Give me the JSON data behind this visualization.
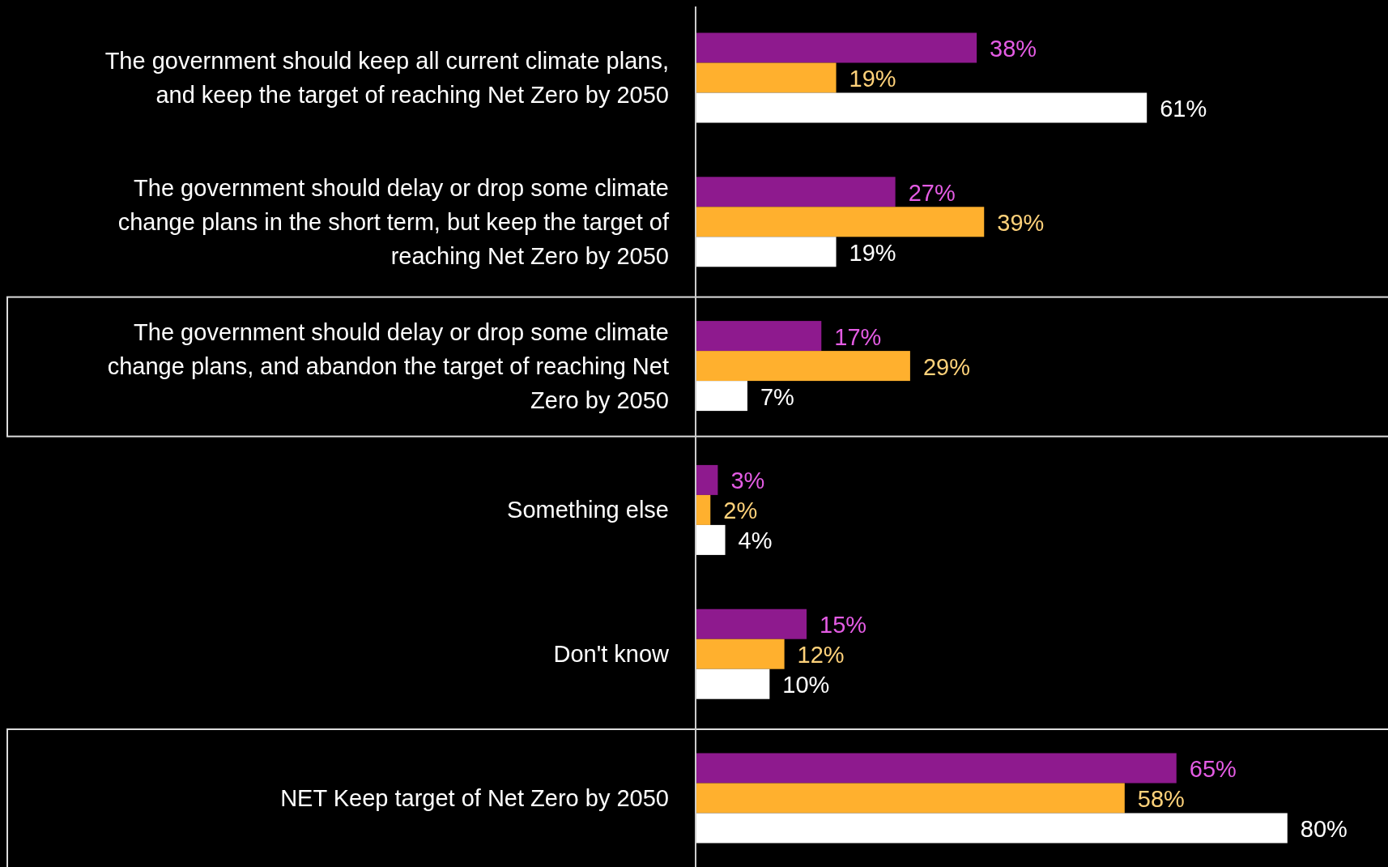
{
  "chart_data": {
    "type": "bar",
    "orientation": "horizontal",
    "categories": [
      "The government should keep all current climate plans, and keep the target of reaching Net Zero by 2050",
      "The government should delay or drop some climate change plans in the short term, but keep the target of reaching Net Zero by 2050",
      "The government should delay or drop some climate change plans, and abandon the target of reaching Net Zero by 2050",
      "Something else",
      "Don't know",
      "NET Keep target of Net Zero by 2050"
    ],
    "series": [
      {
        "color": "#8e1a8e",
        "values": [
          38,
          27,
          17,
          3,
          15,
          65
        ],
        "value_labels": [
          "38%",
          "27%",
          "17%",
          "3%",
          "15%",
          "65%"
        ]
      },
      {
        "color": "#ffb02e",
        "values": [
          19,
          39,
          29,
          2,
          12,
          58
        ],
        "value_labels": [
          "19%",
          "39%",
          "29%",
          "2%",
          "12%",
          "58%"
        ]
      },
      {
        "color": "#ffffff",
        "values": [
          61,
          19,
          7,
          4,
          10,
          80
        ],
        "value_labels": [
          "61%",
          "19%",
          "7%",
          "4%",
          "10%",
          "80%"
        ]
      }
    ]
  }
}
